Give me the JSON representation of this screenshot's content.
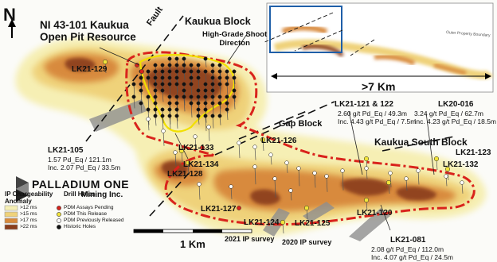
{
  "title": {
    "line1": "NI 43-101 Kaukua",
    "line2": "Open Pit Resource"
  },
  "north": "N",
  "fault": "Fault",
  "blocks": {
    "kaukua": "Kaukua Block",
    "shoot": {
      "line1": "High-Grade Shoot",
      "line2": "Directon"
    },
    "gap": "Gap Block",
    "south": "Kaukua South Block"
  },
  "holes": {
    "lk21_129": "LK21-129",
    "lk21_105": "LK21-105",
    "lk21_133": "LK21-133",
    "lk21_134": "LK21-134",
    "lk21_128": "LK21-128",
    "lk21_126": "LK21-126",
    "lk21_121": "LK21-121 & 122",
    "lk20_016": "LK20-016",
    "lk21_123": "LK21-123",
    "lk21_132": "LK21-132",
    "lk21_127": "LK21-127",
    "lk21_124": "LK21-124",
    "lk21_125": "LK21-125",
    "lk21_120": "LK21-120",
    "lk21_081": "LK21-081"
  },
  "results": {
    "lk21_105": {
      "line1": "1.57 Pd_Eq / 121.1m",
      "line2": "Inc. 2.07 Pd_Eq / 33.5m"
    },
    "lk21_121": {
      "line1": "2.60 g/t Pd_Eq / 49.3m",
      "line2": "Inc. 4.43 g/t Pd_Eq / 7.5m"
    },
    "lk20_016": {
      "line1": "3.24 g/t Pd_Eq / 62.7m",
      "line2": "Inc. 4.23 g/t Pd_Eq / 18.5m"
    },
    "lk21_081": {
      "line1": "2.08 g/t Pd_Eq / 112.0m",
      "line2": "Inc. 4.07 g/t Pd_Eq / 24.5m"
    }
  },
  "surveys": {
    "s2021": "2021 IP survey",
    "s2020": "2020 IP survey"
  },
  "scale": "1 Km",
  "inset": {
    "distance": ">7 Km",
    "boundary": "Outer Property Boundary"
  },
  "logo": {
    "name": "PALLADIUM ONE",
    "sub": "Mining Inc."
  },
  "legend": {
    "ip_title": {
      "line1": "IP Chargeability",
      "line2": "Anomaly"
    },
    "ip_items": [
      {
        "label": ">12 ms",
        "color": "#f6efb4"
      },
      {
        "label": ">15 ms",
        "color": "#efd27a"
      },
      {
        "label": ">17 ms",
        "color": "#d88a3c"
      },
      {
        "label": ">22 ms",
        "color": "#8a3d1c"
      }
    ],
    "holes_title": "Drill Holes",
    "hole_items": [
      {
        "label": "PDM Assays Pending",
        "color": "#d9231c"
      },
      {
        "label": "PDM This Release",
        "color": "#f2e43a"
      },
      {
        "label": "PDM Previously Released",
        "color": "#ffffff"
      },
      {
        "label": "Historic Holes",
        "color": "#111111"
      }
    ]
  },
  "colors": {
    "resource_outline": "#d9231c",
    "shoot_outline": "#f2e000",
    "inset_border": "#1f5fa8",
    "anomaly_low": "#f6efb4",
    "anomaly_mid": "#efd27a",
    "anomaly_high": "#d88a3c",
    "anomaly_peak": "#8a3d1c"
  }
}
